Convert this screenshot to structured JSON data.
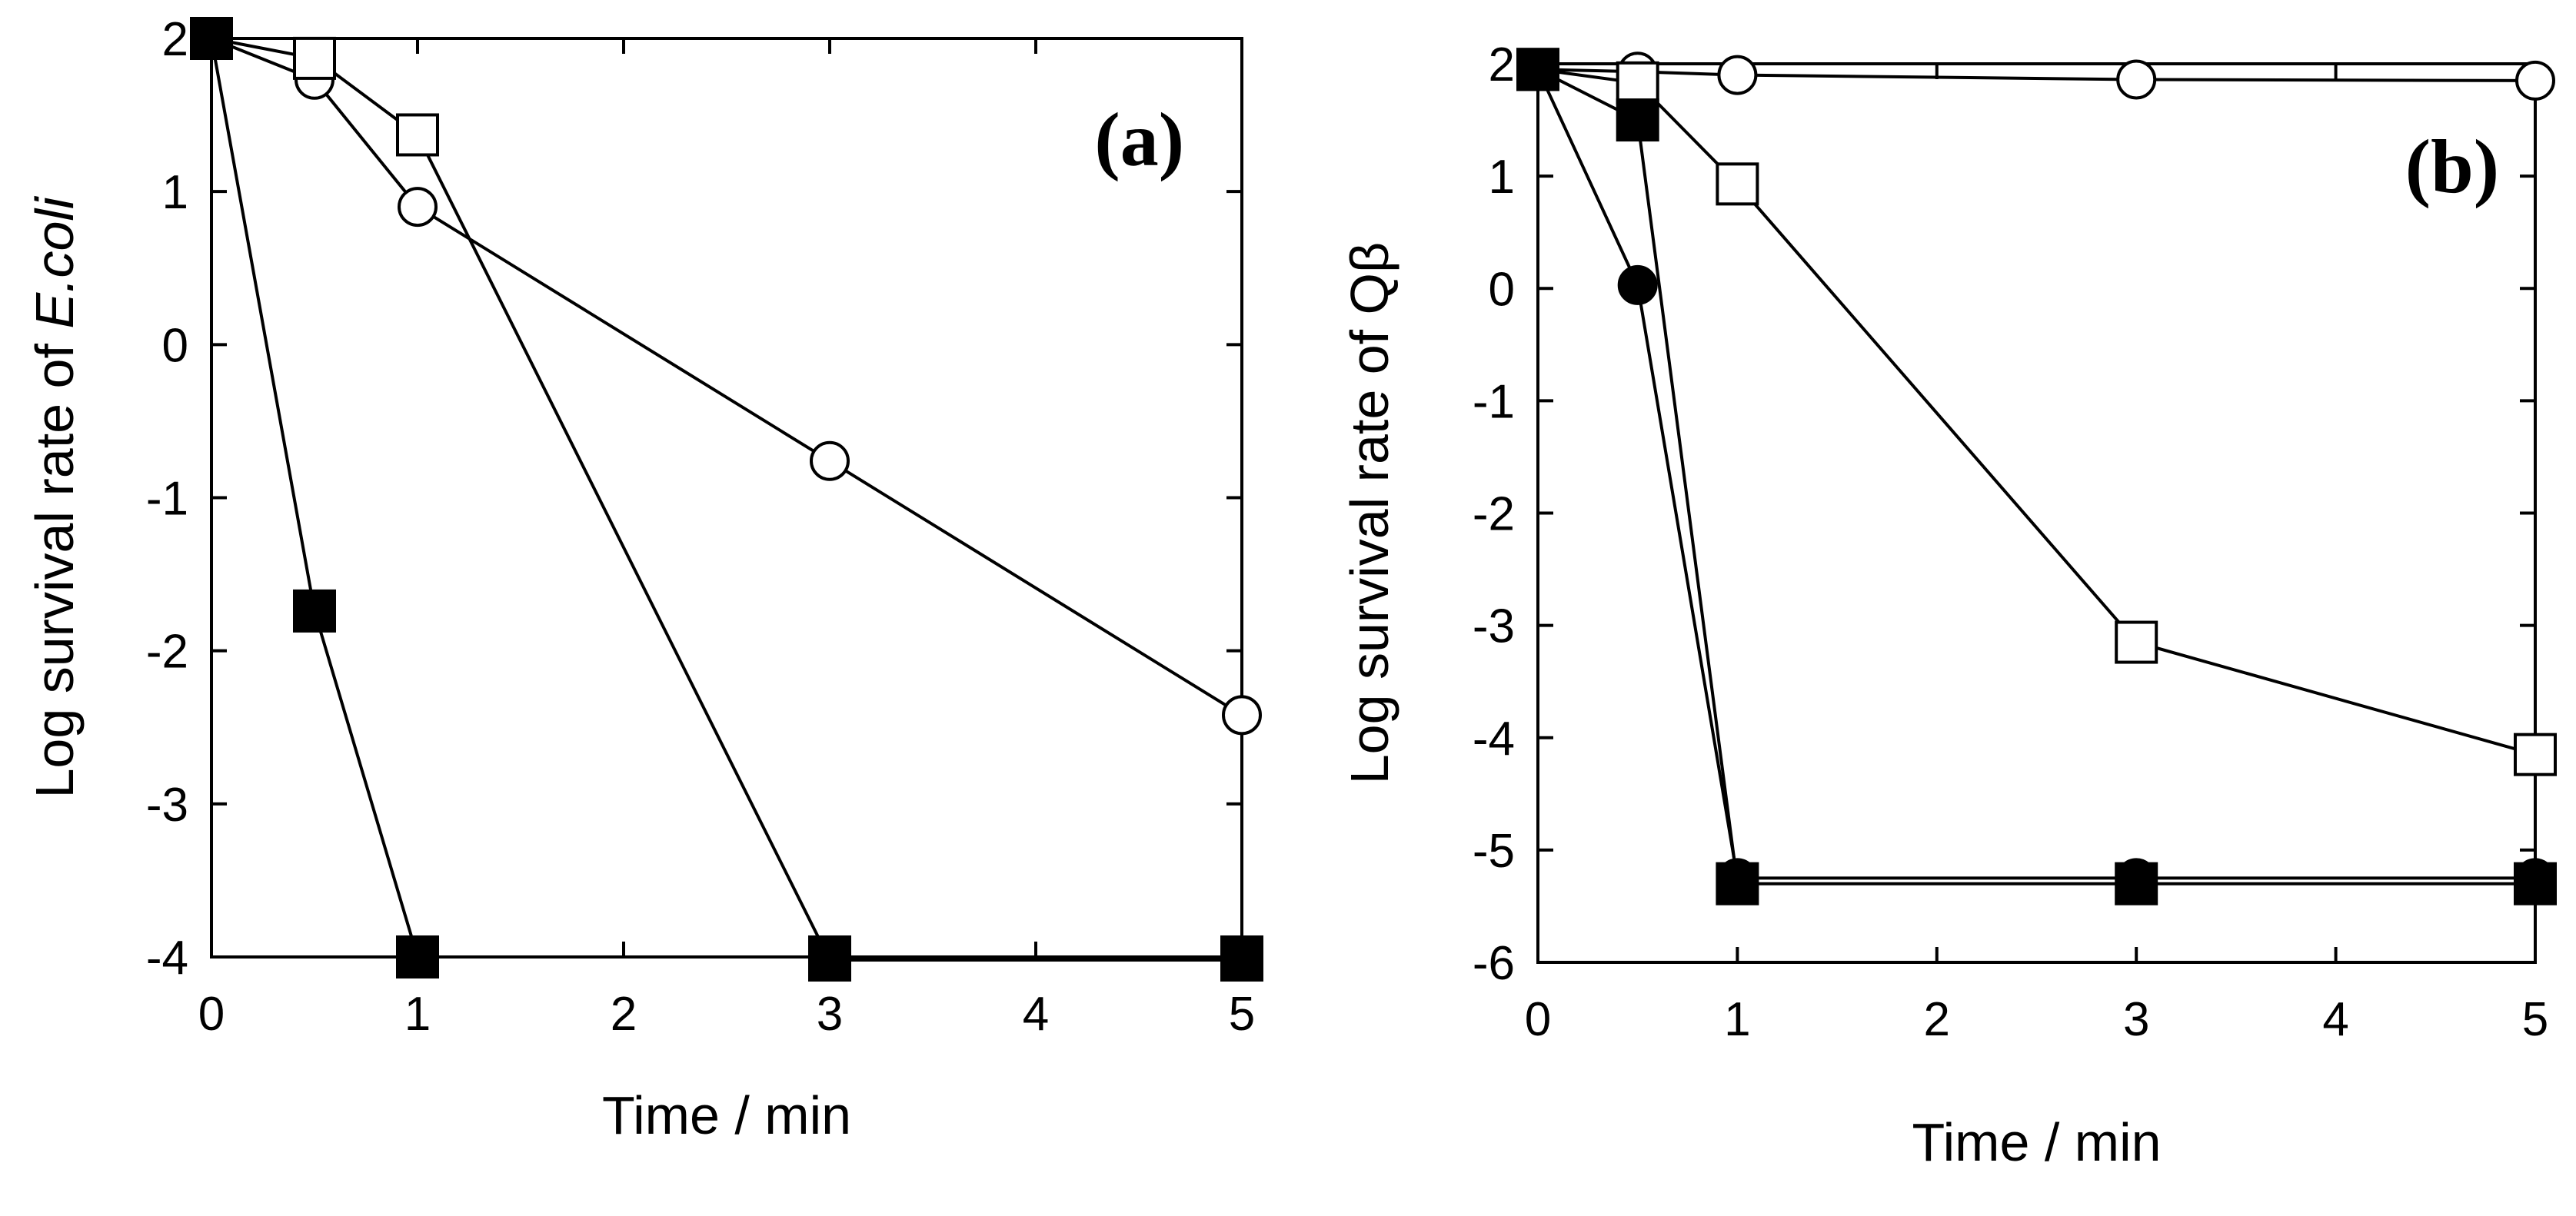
{
  "chart_data": [
    {
      "type": "line",
      "panel_label": "(a)",
      "xlabel": "Time / min",
      "ylabel_prefix": "Log survival rate of ",
      "ylabel_italic": "E.coli",
      "xlim": [
        0,
        5
      ],
      "ylim": [
        -4,
        2
      ],
      "xticks": [
        0,
        1,
        2,
        3,
        4,
        5
      ],
      "yticks": [
        -4,
        -3,
        -2,
        -1,
        0,
        1,
        2
      ],
      "grid": false,
      "series": [
        {
          "marker": "open-circle",
          "x": [
            0,
            0.5,
            1,
            3,
            5
          ],
          "y": [
            2,
            1.73,
            0.9,
            -0.76,
            -2.42
          ]
        },
        {
          "marker": "open-square",
          "x": [
            0,
            0.5,
            1,
            3,
            5
          ],
          "y": [
            2,
            1.87,
            1.37,
            -4.02,
            -4.02
          ]
        },
        {
          "marker": "filled-square",
          "x": [
            0,
            0.5,
            1,
            3,
            5
          ],
          "y": [
            2,
            -1.74,
            -4,
            -4,
            -4
          ]
        }
      ]
    },
    {
      "type": "line",
      "panel_label": "(b)",
      "xlabel": "Time / min",
      "ylabel_prefix": "Log survival rate of Qβ",
      "ylabel_italic": "",
      "xlim": [
        0,
        5
      ],
      "ylim": [
        -6,
        2
      ],
      "xticks": [
        0,
        1,
        2,
        3,
        4,
        5
      ],
      "yticks": [
        -6,
        -5,
        -4,
        -3,
        -2,
        -1,
        0,
        1,
        2
      ],
      "grid": false,
      "series": [
        {
          "marker": "open-circle",
          "x": [
            0,
            0.5,
            1,
            3,
            5
          ],
          "y": [
            1.95,
            1.93,
            1.9,
            1.86,
            1.85
          ]
        },
        {
          "marker": "open-square",
          "x": [
            0,
            0.5,
            1,
            3,
            5
          ],
          "y": [
            1.95,
            1.83,
            0.93,
            -3.15,
            -4.15
          ]
        },
        {
          "marker": "filled-circle",
          "x": [
            0,
            0.5,
            1,
            3,
            5
          ],
          "y": [
            1.95,
            0.03,
            -5.25,
            -5.25,
            -5.25
          ]
        },
        {
          "marker": "filled-square",
          "x": [
            0,
            0.5,
            1,
            3,
            5
          ],
          "y": [
            1.95,
            1.5,
            -5.3,
            -5.3,
            -5.3
          ]
        }
      ]
    }
  ]
}
